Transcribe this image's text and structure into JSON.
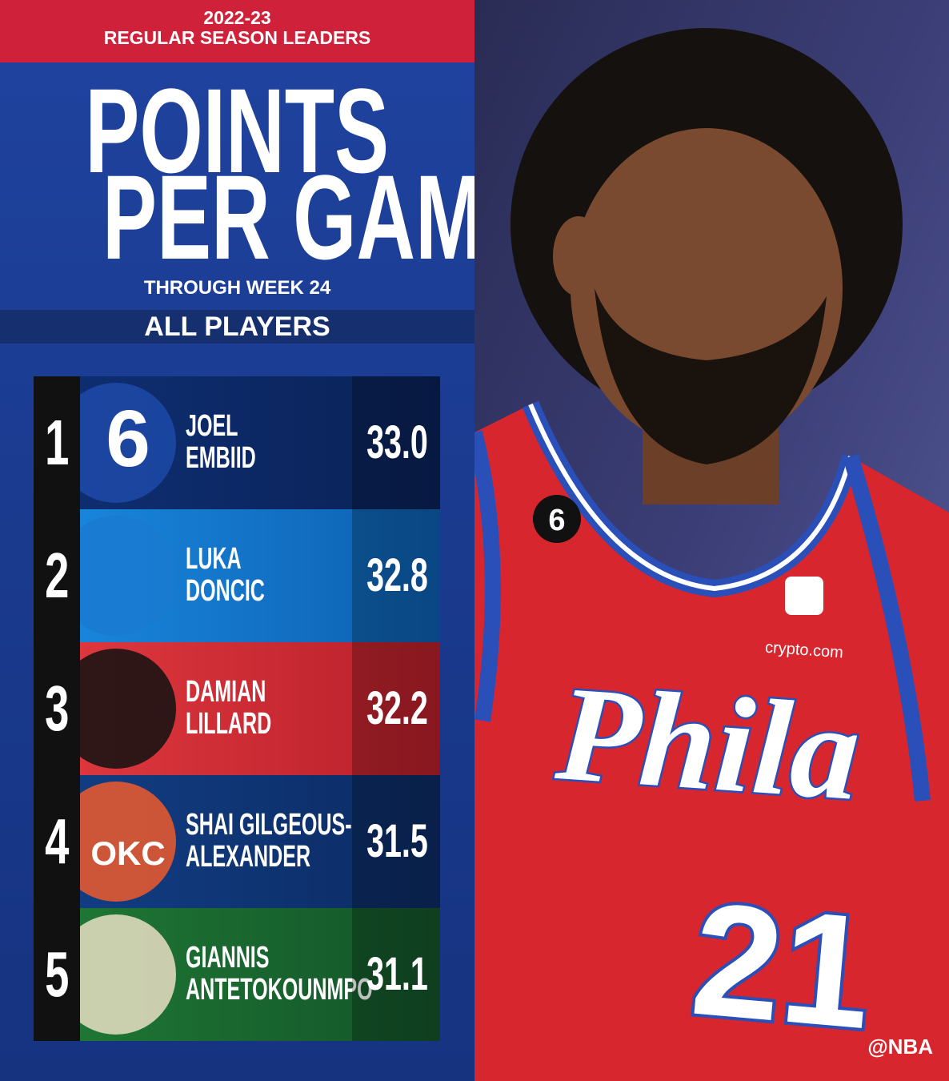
{
  "header": {
    "season": "2022-23",
    "subtitle": "REGULAR SEASON LEADERS",
    "title_lines": [
      "POINTS",
      "PER GAME"
    ],
    "period": "THROUGH WEEK 24",
    "filter": "ALL PLAYERS"
  },
  "leaders": [
    {
      "rank": 1,
      "logo_text": "6",
      "name_lines": [
        "JOEL",
        "EMBIID"
      ],
      "value": "33.0"
    },
    {
      "rank": 2,
      "name_lines": [
        "LUKA",
        "DONCIC"
      ],
      "value": "32.8"
    },
    {
      "rank": 3,
      "name_lines": [
        "DAMIAN",
        "LILLARD"
      ],
      "value": "32.2"
    },
    {
      "rank": 4,
      "logo_text": "OKC",
      "name_lines": [
        "SHAI GILGEOUS-",
        "ALEXANDER"
      ],
      "value": "31.5"
    },
    {
      "rank": 5,
      "name_lines": [
        "GIANNIS",
        "ANTETOKOUNMPO"
      ],
      "value": "31.1"
    }
  ],
  "photo": {
    "patch": "6",
    "sponsor": "crypto.com",
    "jersey_text": "Phila",
    "jersey_number": "21"
  },
  "credit": "@NBA"
}
